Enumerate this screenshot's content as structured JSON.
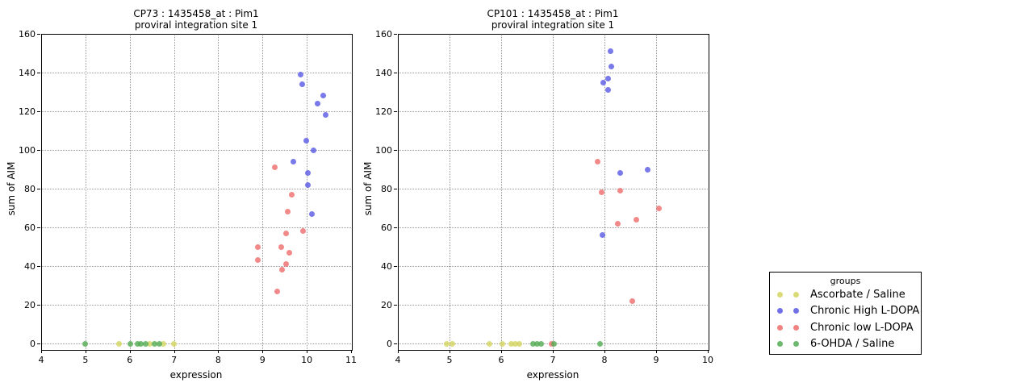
{
  "legend": {
    "title": "groups",
    "entries": [
      {
        "label": "Ascorbate / Saline",
        "color": "#d3d45f"
      },
      {
        "label": "Chronic High L-DOPA",
        "color": "#5757e3"
      },
      {
        "label": "Chronic low L-DOPA",
        "color": "#ef6c6c"
      },
      {
        "label": "6-OHDA / Saline",
        "color": "#52ab52"
      }
    ]
  },
  "chart_data": [
    {
      "type": "scatter",
      "title_line1": "CP73 : 1435458_at : Pim1",
      "title_line2": "proviral integration site 1",
      "xlabel": "expression",
      "ylabel": "sum of AIM",
      "xlim": [
        4,
        11
      ],
      "ylim": [
        0,
        160
      ],
      "xticks": [
        4,
        5,
        6,
        7,
        8,
        9,
        10,
        11
      ],
      "yticks": [
        0,
        20,
        40,
        60,
        80,
        100,
        120,
        140,
        160
      ],
      "grid": "dotted",
      "series": [
        {
          "name": "Ascorbate / Saline",
          "color": "#d3d45f",
          "points": [
            [
              5.76,
              0
            ],
            [
              6.46,
              0
            ],
            [
              6.77,
              0
            ],
            [
              6.99,
              0
            ]
          ]
        },
        {
          "name": "Chronic High L-DOPA",
          "color": "#5757e3",
          "points": [
            [
              9.86,
              139
            ],
            [
              9.89,
              134
            ],
            [
              10.38,
              128
            ],
            [
              10.24,
              124
            ],
            [
              10.42,
              118
            ],
            [
              9.99,
              105
            ],
            [
              10.15,
              100
            ],
            [
              9.69,
              94
            ],
            [
              10.03,
              88
            ],
            [
              10.03,
              82
            ],
            [
              10.12,
              67
            ]
          ]
        },
        {
          "name": "Chronic low L-DOPA",
          "color": "#ef6c6c",
          "points": [
            [
              9.28,
              91
            ],
            [
              9.66,
              77
            ],
            [
              9.57,
              68
            ],
            [
              9.92,
              58
            ],
            [
              9.53,
              57
            ],
            [
              8.9,
              50
            ],
            [
              9.43,
              50
            ],
            [
              9.61,
              47
            ],
            [
              8.9,
              43
            ],
            [
              9.54,
              41
            ],
            [
              9.44,
              38
            ],
            [
              9.34,
              27
            ]
          ]
        },
        {
          "name": "6-OHDA / Saline",
          "color": "#52ab52",
          "points": [
            [
              5.0,
              0
            ],
            [
              6.02,
              0
            ],
            [
              6.17,
              0
            ],
            [
              6.26,
              0
            ],
            [
              6.36,
              0
            ],
            [
              6.56,
              0
            ],
            [
              6.67,
              0
            ]
          ]
        }
      ]
    },
    {
      "type": "scatter",
      "title_line1": "CP101 : 1435458_at : Pim1",
      "title_line2": "proviral integration site 1",
      "xlabel": "expression",
      "ylabel": "sum of AIM",
      "xlim": [
        4,
        10
      ],
      "ylim": [
        0,
        160
      ],
      "xticks": [
        4,
        5,
        6,
        7,
        8,
        9,
        10
      ],
      "yticks": [
        0,
        20,
        40,
        60,
        80,
        100,
        120,
        140,
        160
      ],
      "grid": "dotted",
      "series": [
        {
          "name": "Ascorbate / Saline",
          "color": "#d3d45f",
          "points": [
            [
              4.94,
              0
            ],
            [
              5.06,
              0
            ],
            [
              5.78,
              0
            ],
            [
              6.02,
              0
            ],
            [
              6.19,
              0
            ],
            [
              6.28,
              0
            ],
            [
              6.35,
              0
            ]
          ]
        },
        {
          "name": "Chronic High L-DOPA",
          "color": "#5757e3",
          "points": [
            [
              8.12,
              151
            ],
            [
              8.14,
              143
            ],
            [
              8.07,
              137
            ],
            [
              7.98,
              135
            ],
            [
              8.07,
              131
            ],
            [
              8.84,
              90
            ],
            [
              8.31,
              88
            ],
            [
              7.96,
              56
            ]
          ]
        },
        {
          "name": "Chronic low L-DOPA",
          "color": "#ef6c6c",
          "points": [
            [
              7.87,
              94
            ],
            [
              8.31,
              79
            ],
            [
              7.94,
              78
            ],
            [
              9.05,
              70
            ],
            [
              8.61,
              64
            ],
            [
              8.25,
              62
            ],
            [
              8.54,
              22
            ],
            [
              6.97,
              0
            ]
          ]
        },
        {
          "name": "6-OHDA / Saline",
          "color": "#52ab52",
          "points": [
            [
              6.62,
              0
            ],
            [
              6.7,
              0
            ],
            [
              6.78,
              0
            ],
            [
              7.03,
              0
            ],
            [
              7.91,
              0
            ]
          ]
        }
      ]
    }
  ]
}
